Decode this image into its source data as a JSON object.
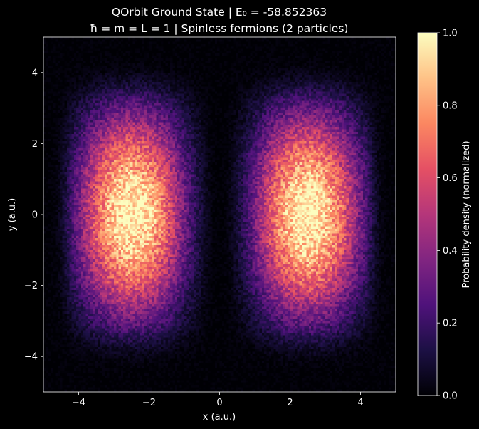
{
  "chart_data": {
    "type": "heatmap",
    "title": "QOrbit Ground State | E₀ = -58.852363",
    "subtitle": "ħ = m = L = 1 | Spinless fermions (2 particles)",
    "xlabel": "x (a.u.)",
    "ylabel": "y (a.u.)",
    "xlim": [
      -5,
      5
    ],
    "ylim": [
      -5,
      5
    ],
    "x_ticks": [
      -4,
      -2,
      0,
      2,
      4
    ],
    "y_ticks": [
      -4,
      -2,
      0,
      2,
      4
    ],
    "x_tick_labels": [
      "−4",
      "−2",
      "0",
      "2",
      "4"
    ],
    "y_tick_labels": [
      "−4",
      "−2",
      "0",
      "2",
      "4"
    ],
    "colorbar": {
      "label": "Probability density (normalized)",
      "range": [
        0,
        1
      ],
      "ticks": [
        0.0,
        0.2,
        0.4,
        0.6,
        0.8,
        1.0
      ],
      "tick_labels": [
        "0.0",
        "0.2",
        "0.4",
        "0.6",
        "0.8",
        "1.0"
      ],
      "colormap": "magma"
    },
    "grid": false,
    "density_model": {
      "description_of_data": "two lobes centered on y=0, symmetric about x=0",
      "lobe_centers_x": [
        -2.5,
        2.5
      ],
      "lobe_center_y": 0,
      "peak_value": 1.0,
      "node_line_x": 0,
      "bins": 150
    }
  },
  "colors": {
    "background": "#000000",
    "text": "#ffffff",
    "colormap_stops": [
      "#000004",
      "#1c1044",
      "#4f127b",
      "#812581",
      "#b5367a",
      "#e55064",
      "#fb8761",
      "#fec287",
      "#fcfdbf"
    ]
  }
}
